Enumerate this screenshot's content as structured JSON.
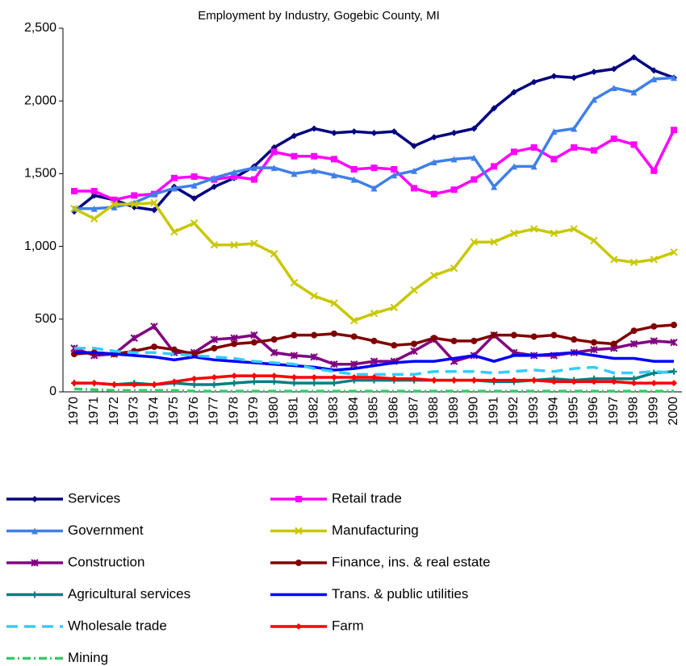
{
  "chart_data": {
    "type": "line",
    "title": "Employment by Industry, Gogebic County, MI",
    "categories": [
      "1970",
      "1971",
      "1972",
      "1973",
      "1974",
      "1975",
      "1976",
      "1977",
      "1978",
      "1979",
      "1980",
      "1981",
      "1982",
      "1983",
      "1984",
      "1985",
      "1986",
      "1987",
      "1988",
      "1989",
      "1990",
      "1991",
      "1992",
      "1993",
      "1994",
      "1995",
      "1996",
      "1997",
      "1998",
      "1999",
      "2000"
    ],
    "ylim": [
      0,
      2500
    ],
    "yticks": [
      0,
      500,
      {
        "value": 1000,
        "label": "1,000"
      },
      {
        "value": 1500,
        "label": "1,500"
      },
      {
        "value": 2000,
        "label": "2,000"
      },
      {
        "value": 2500,
        "label": "2,500"
      }
    ],
    "series": [
      {
        "name": "Services",
        "color": "#000080",
        "marker": "diamond",
        "values": [
          1240,
          1350,
          1320,
          1270,
          1250,
          1410,
          1330,
          1410,
          1470,
          1550,
          1680,
          1760,
          1810,
          1780,
          1790,
          1780,
          1790,
          1690,
          1750,
          1780,
          1810,
          1950,
          2060,
          2130,
          2170,
          2160,
          2200,
          2220,
          2300,
          2210,
          2160
        ]
      },
      {
        "name": "Retail trade",
        "color": "#ff00ff",
        "marker": "square",
        "values": [
          1380,
          1380,
          1320,
          1350,
          1360,
          1470,
          1480,
          1460,
          1480,
          1460,
          1650,
          1620,
          1620,
          1600,
          1530,
          1540,
          1530,
          1400,
          1360,
          1390,
          1460,
          1550,
          1650,
          1680,
          1600,
          1680,
          1660,
          1740,
          1700,
          1520,
          1800
        ]
      },
      {
        "name": "Government",
        "color": "#3f7fe8",
        "marker": "triangle",
        "values": [
          1260,
          1260,
          1270,
          1300,
          1360,
          1400,
          1420,
          1470,
          1510,
          1540,
          1540,
          1500,
          1520,
          1490,
          1460,
          1400,
          1490,
          1520,
          1580,
          1600,
          1610,
          1410,
          1550,
          1550,
          1790,
          1810,
          2010,
          2090,
          2060,
          2150,
          2160
        ]
      },
      {
        "name": "Manufacturing",
        "color": "#c8c800",
        "marker": "x",
        "values": [
          1260,
          1190,
          1290,
          1290,
          1300,
          1100,
          1160,
          1010,
          1010,
          1020,
          950,
          750,
          660,
          610,
          490,
          540,
          580,
          700,
          800,
          850,
          1030,
          1030,
          1090,
          1120,
          1090,
          1120,
          1040,
          910,
          890,
          910,
          960
        ]
      },
      {
        "name": "Construction",
        "color": "#800080",
        "marker": "asterisk",
        "values": [
          300,
          250,
          260,
          370,
          450,
          270,
          270,
          360,
          370,
          390,
          270,
          250,
          240,
          190,
          190,
          210,
          210,
          280,
          360,
          210,
          250,
          390,
          270,
          250,
          250,
          270,
          290,
          300,
          330,
          350,
          340
        ]
      },
      {
        "name": "Finance, ins. & real estate",
        "color": "#800000",
        "marker": "circle",
        "values": [
          260,
          270,
          260,
          280,
          310,
          290,
          260,
          300,
          330,
          340,
          360,
          390,
          390,
          400,
          380,
          350,
          320,
          330,
          370,
          350,
          350,
          390,
          390,
          380,
          390,
          360,
          340,
          330,
          420,
          450,
          460
        ]
      },
      {
        "name": "Agricultural services",
        "color": "#008080",
        "marker": "plus",
        "values": [
          60,
          60,
          50,
          60,
          50,
          60,
          50,
          50,
          60,
          70,
          70,
          60,
          60,
          60,
          80,
          80,
          80,
          80,
          80,
          80,
          80,
          70,
          70,
          80,
          90,
          80,
          90,
          90,
          90,
          130,
          140
        ]
      },
      {
        "name": "Trans. & public utilities",
        "color": "#0000ff",
        "marker": "none",
        "values": [
          270,
          270,
          260,
          250,
          240,
          220,
          240,
          220,
          210,
          200,
          190,
          180,
          170,
          150,
          160,
          180,
          200,
          210,
          210,
          230,
          250,
          210,
          250,
          250,
          260,
          270,
          250,
          230,
          230,
          210,
          210
        ]
      },
      {
        "name": "Wholesale trade",
        "color": "#33ccff",
        "marker": "none",
        "dash": "dash",
        "values": [
          300,
          300,
          280,
          270,
          270,
          260,
          250,
          240,
          230,
          210,
          200,
          190,
          160,
          140,
          120,
          120,
          120,
          120,
          140,
          140,
          140,
          130,
          140,
          150,
          140,
          160,
          170,
          130,
          130,
          140,
          130
        ]
      },
      {
        "name": "Farm",
        "color": "#ff0000",
        "marker": "diamond",
        "values": [
          60,
          60,
          50,
          50,
          50,
          70,
          90,
          100,
          110,
          110,
          110,
          100,
          100,
          100,
          100,
          100,
          90,
          90,
          80,
          80,
          80,
          80,
          80,
          80,
          70,
          70,
          70,
          70,
          60,
          60,
          60
        ]
      },
      {
        "name": "Mining",
        "color": "#33cc66",
        "marker": "none",
        "dash": "dashdot",
        "values": [
          20,
          15,
          10,
          10,
          10,
          10,
          5,
          5,
          5,
          5,
          5,
          5,
          5,
          5,
          5,
          5,
          5,
          5,
          5,
          5,
          5,
          5,
          5,
          5,
          5,
          5,
          5,
          5,
          5,
          5,
          5
        ]
      }
    ]
  }
}
